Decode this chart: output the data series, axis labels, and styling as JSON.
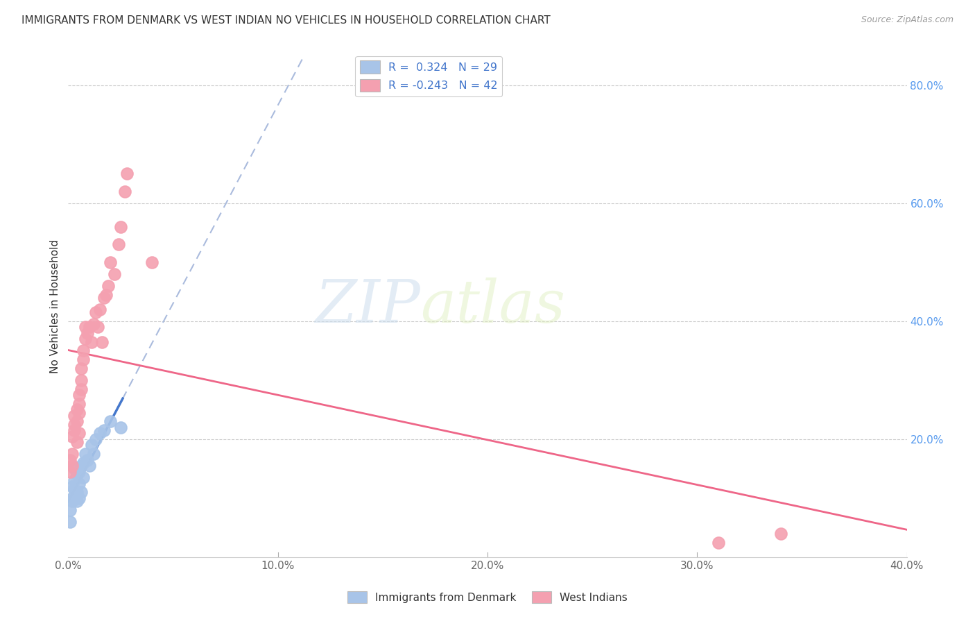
{
  "title": "IMMIGRANTS FROM DENMARK VS WEST INDIAN NO VEHICLES IN HOUSEHOLD CORRELATION CHART",
  "source": "Source: ZipAtlas.com",
  "xlabel_blue": "Immigrants from Denmark",
  "xlabel_pink": "West Indians",
  "ylabel": "No Vehicles in Household",
  "xlim": [
    0.0,
    0.4
  ],
  "ylim": [
    0.0,
    0.85
  ],
  "x_ticks": [
    0.0,
    0.1,
    0.2,
    0.3,
    0.4
  ],
  "x_tick_labels": [
    "0.0%",
    "10.0%",
    "20.0%",
    "30.0%",
    "40.0%"
  ],
  "y_ticks_right": [
    0.2,
    0.4,
    0.6,
    0.8
  ],
  "y_tick_labels_right": [
    "20.0%",
    "40.0%",
    "60.0%",
    "80.0%"
  ],
  "R_blue": 0.324,
  "N_blue": 29,
  "R_pink": -0.243,
  "N_pink": 42,
  "blue_color": "#A8C4E8",
  "pink_color": "#F4A0B0",
  "trendline_blue_color": "#4477CC",
  "trendline_pink_color": "#EE6688",
  "watermark_zip": "ZIP",
  "watermark_atlas": "atlas",
  "blue_points_x": [
    0.001,
    0.001,
    0.002,
    0.002,
    0.002,
    0.003,
    0.003,
    0.003,
    0.003,
    0.004,
    0.004,
    0.004,
    0.005,
    0.005,
    0.005,
    0.006,
    0.006,
    0.007,
    0.007,
    0.008,
    0.009,
    0.01,
    0.011,
    0.012,
    0.013,
    0.015,
    0.017,
    0.02,
    0.025
  ],
  "blue_points_y": [
    0.08,
    0.06,
    0.1,
    0.12,
    0.095,
    0.115,
    0.13,
    0.15,
    0.105,
    0.095,
    0.11,
    0.14,
    0.125,
    0.145,
    0.1,
    0.155,
    0.11,
    0.16,
    0.135,
    0.175,
    0.165,
    0.155,
    0.19,
    0.175,
    0.2,
    0.21,
    0.215,
    0.23,
    0.22
  ],
  "pink_points_x": [
    0.001,
    0.001,
    0.002,
    0.002,
    0.002,
    0.003,
    0.003,
    0.003,
    0.004,
    0.004,
    0.004,
    0.005,
    0.005,
    0.005,
    0.005,
    0.006,
    0.006,
    0.006,
    0.007,
    0.007,
    0.008,
    0.008,
    0.009,
    0.01,
    0.011,
    0.012,
    0.013,
    0.014,
    0.015,
    0.016,
    0.017,
    0.018,
    0.019,
    0.02,
    0.022,
    0.024,
    0.025,
    0.027,
    0.028,
    0.04,
    0.31,
    0.34
  ],
  "pink_points_y": [
    0.165,
    0.145,
    0.205,
    0.175,
    0.155,
    0.225,
    0.24,
    0.215,
    0.25,
    0.23,
    0.195,
    0.275,
    0.26,
    0.245,
    0.21,
    0.32,
    0.3,
    0.285,
    0.35,
    0.335,
    0.37,
    0.39,
    0.38,
    0.39,
    0.365,
    0.395,
    0.415,
    0.39,
    0.42,
    0.365,
    0.44,
    0.445,
    0.46,
    0.5,
    0.48,
    0.53,
    0.56,
    0.62,
    0.65,
    0.5,
    0.025,
    0.04
  ]
}
